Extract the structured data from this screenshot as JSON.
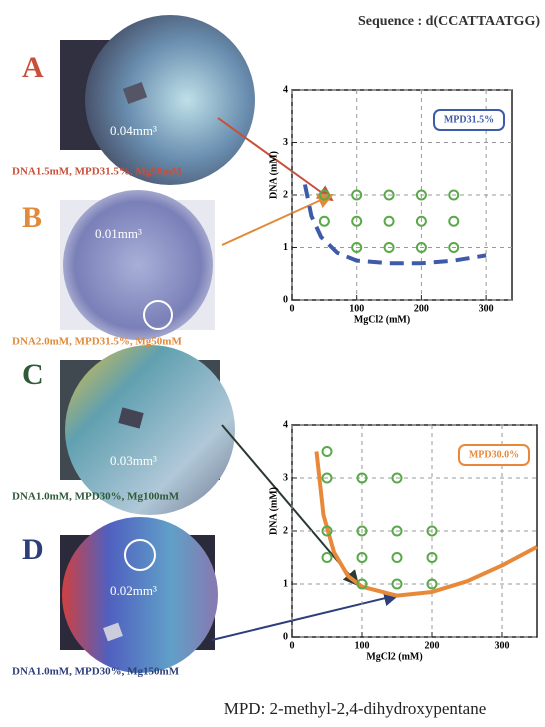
{
  "sequence": "Sequence : d(CCATTAATGG)",
  "panels": [
    {
      "label": "A",
      "volume": "0.04mm³",
      "caption": "DNA1.5mM, MPD31.5%, Mg50mM",
      "color": "#c8503a"
    },
    {
      "label": "B",
      "volume": "0.01mm³",
      "caption": "DNA2.0mM, MPD31.5%, Mg50mM",
      "color": "#e08a3a"
    },
    {
      "label": "C",
      "volume": "0.03mm³",
      "caption": "DNA1.0mM, MPD30%, Mg100mM",
      "color": "#2f5a3a"
    },
    {
      "label": "D",
      "volume": "0.02mm³",
      "caption": "DNA1.0mM, MPD30%, Mg150mM",
      "color": "#2d3f7a"
    }
  ],
  "chart_data": [
    {
      "type": "scatter",
      "xlabel": "MgCl2 (mM)",
      "ylabel": "DNA (mM)",
      "xlim": [
        0,
        340
      ],
      "ylim": [
        0,
        4
      ],
      "xticks": [
        0,
        100,
        200,
        300
      ],
      "yticks": [
        0,
        1,
        2,
        3,
        4
      ],
      "grid": true,
      "legend": "upper right",
      "points": {
        "color": "#5aa84a",
        "x": [
          50,
          100,
          150,
          200,
          250,
          50,
          100,
          150,
          200,
          250,
          100,
          150,
          200,
          250
        ],
        "values": [
          2,
          2,
          2,
          2,
          2,
          1.5,
          1.5,
          1.5,
          1.5,
          1.5,
          1,
          1,
          1,
          1
        ]
      },
      "curve": {
        "name": "MPD31.5%",
        "color": "#3d5ba8",
        "dashed": true,
        "x": [
          20,
          30,
          45,
          70,
          100,
          150,
          200,
          250,
          300
        ],
        "values": [
          2.2,
          1.6,
          1.2,
          0.9,
          0.75,
          0.7,
          0.7,
          0.75,
          0.85
        ]
      }
    },
    {
      "type": "scatter",
      "xlabel": "MgCl2 (mM)",
      "ylabel": "DNA (mM)",
      "xlim": [
        0,
        350
      ],
      "ylim": [
        0,
        4
      ],
      "xticks": [
        0,
        100,
        200,
        300
      ],
      "yticks": [
        0,
        1,
        2,
        3,
        4
      ],
      "grid": true,
      "legend": "upper right",
      "points": {
        "color": "#5aa84a",
        "x": [
          50,
          50,
          100,
          150,
          50,
          100,
          150,
          200,
          50,
          100,
          150,
          200,
          100,
          150,
          200
        ],
        "values": [
          3.5,
          3,
          3,
          3,
          2,
          2,
          2,
          2,
          1.5,
          1.5,
          1.5,
          1.5,
          1,
          1,
          1
        ]
      },
      "curve": {
        "name": "MPD30.0%",
        "color": "#e8893a",
        "dashed": false,
        "x": [
          35,
          45,
          60,
          80,
          100,
          150,
          200,
          250,
          300,
          350
        ],
        "values": [
          3.5,
          2.3,
          1.6,
          1.15,
          0.95,
          0.78,
          0.85,
          1.05,
          1.35,
          1.7
        ]
      }
    }
  ],
  "footnote": "MPD: 2-methyl-2,4-dihydroxypentane"
}
